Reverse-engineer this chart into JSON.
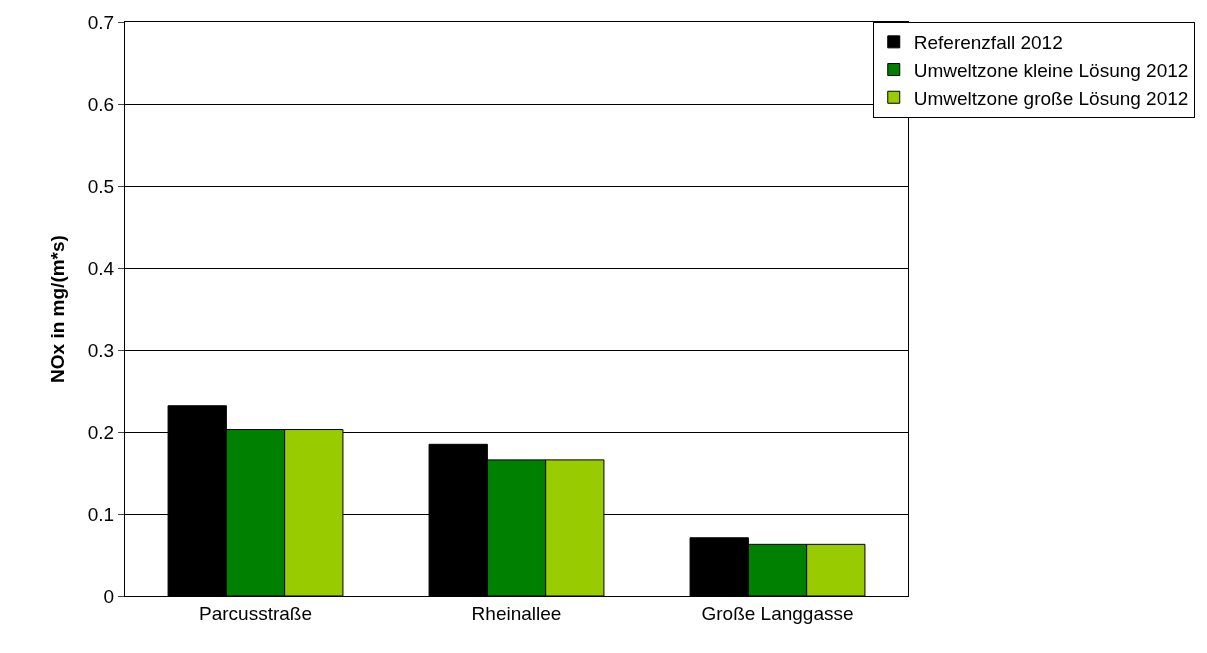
{
  "chart_data": {
    "type": "bar",
    "ylabel": "NOx in mg/(m*s)",
    "categories": [
      "Parcusstraße",
      "Rheinallee",
      "Große Langgasse"
    ],
    "series": [
      {
        "name": "Referenzfall 2012",
        "color": "#000000",
        "values": [
          0.232,
          0.185,
          0.071
        ]
      },
      {
        "name": "Umweltzone kleine Lösung 2012",
        "color": "#008000",
        "values": [
          0.203,
          0.166,
          0.063
        ]
      },
      {
        "name": "Umweltzone große Lösung 2012",
        "color": "#99cc00",
        "values": [
          0.203,
          0.166,
          0.063
        ]
      }
    ],
    "ylim": [
      0,
      0.7
    ],
    "yticks": [
      0,
      0.1,
      0.2,
      0.3,
      0.4,
      0.5,
      0.6,
      0.7
    ],
    "grid": "y",
    "legend": "top right"
  }
}
